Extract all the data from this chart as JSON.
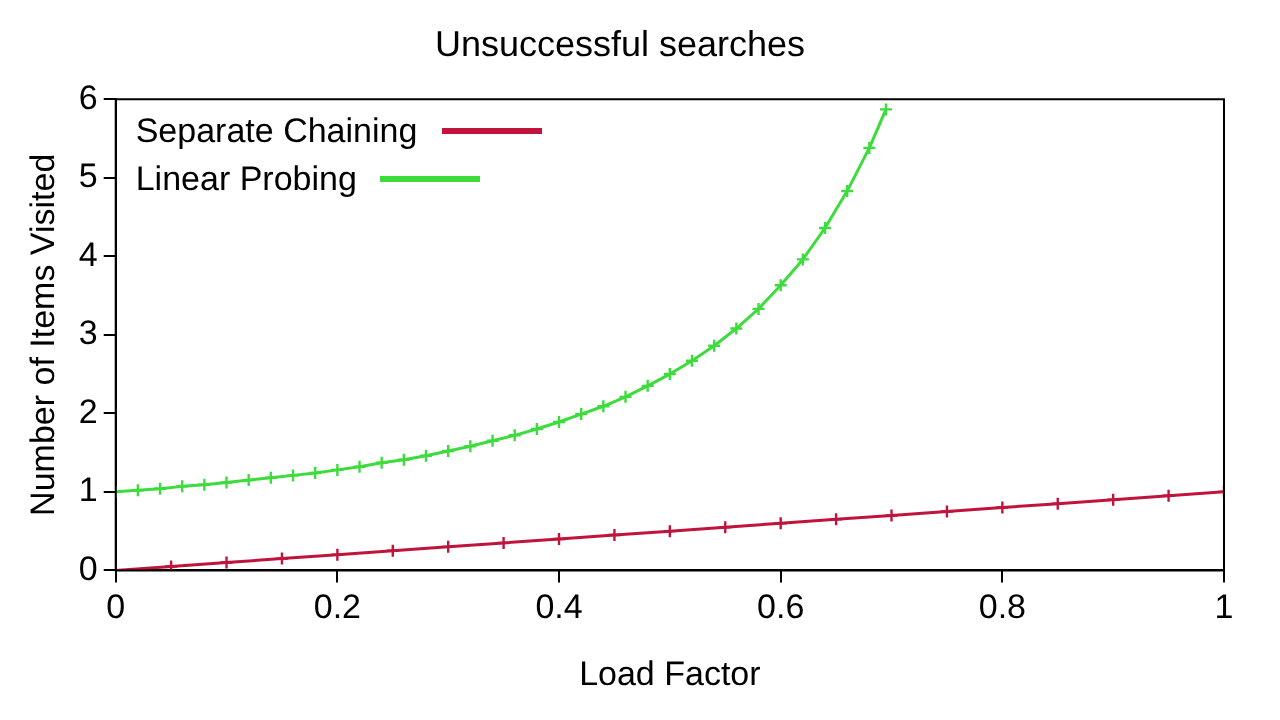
{
  "chart_data": {
    "type": "line",
    "title": "Unsuccessful searches",
    "xlabel": "Load Factor",
    "ylabel": "Number of Items Visited",
    "xlim": [
      0,
      1
    ],
    "xticks": [
      0,
      0.2,
      0.4,
      0.6,
      0.8,
      1
    ],
    "ylim": [
      0,
      6
    ],
    "yticks": [
      0,
      1,
      2,
      3,
      4,
      5,
      6
    ],
    "grid": false,
    "legend": "top left",
    "marker": "cross",
    "series": [
      {
        "name": "Separate Chaining",
        "color": "#c0143c",
        "x": [
          0,
          0.05,
          0.1,
          0.15,
          0.2,
          0.25,
          0.3,
          0.35,
          0.4,
          0.45,
          0.5,
          0.55,
          0.6,
          0.65,
          0.7,
          0.75,
          0.8,
          0.85,
          0.9,
          0.95,
          1
        ],
        "values": [
          0,
          0.05,
          0.1,
          0.15,
          0.2,
          0.25,
          0.3,
          0.35,
          0.4,
          0.45,
          0.5,
          0.55,
          0.6,
          0.65,
          0.7,
          0.75,
          0.8,
          0.85,
          0.9,
          0.95,
          1
        ]
      },
      {
        "name": "Linear Probing",
        "color": "#3cdc3c",
        "x": [
          0,
          0.02,
          0.04,
          0.06,
          0.08,
          0.1,
          0.12,
          0.14,
          0.16,
          0.18,
          0.2,
          0.22,
          0.24,
          0.26,
          0.28,
          0.3,
          0.32,
          0.34,
          0.36,
          0.38,
          0.4,
          0.42,
          0.44,
          0.46,
          0.48,
          0.5,
          0.52,
          0.54,
          0.56,
          0.58,
          0.6,
          0.62,
          0.64,
          0.66,
          0.68,
          0.695
        ],
        "values": [
          1,
          1.02,
          1.04,
          1.07,
          1.09,
          1.12,
          1.15,
          1.18,
          1.21,
          1.24,
          1.28,
          1.32,
          1.37,
          1.41,
          1.46,
          1.52,
          1.58,
          1.65,
          1.72,
          1.8,
          1.89,
          1.99,
          2.09,
          2.21,
          2.35,
          2.5,
          2.67,
          2.86,
          3.08,
          3.33,
          3.63,
          3.96,
          4.36,
          4.83,
          5.38,
          5.87
        ]
      }
    ]
  }
}
